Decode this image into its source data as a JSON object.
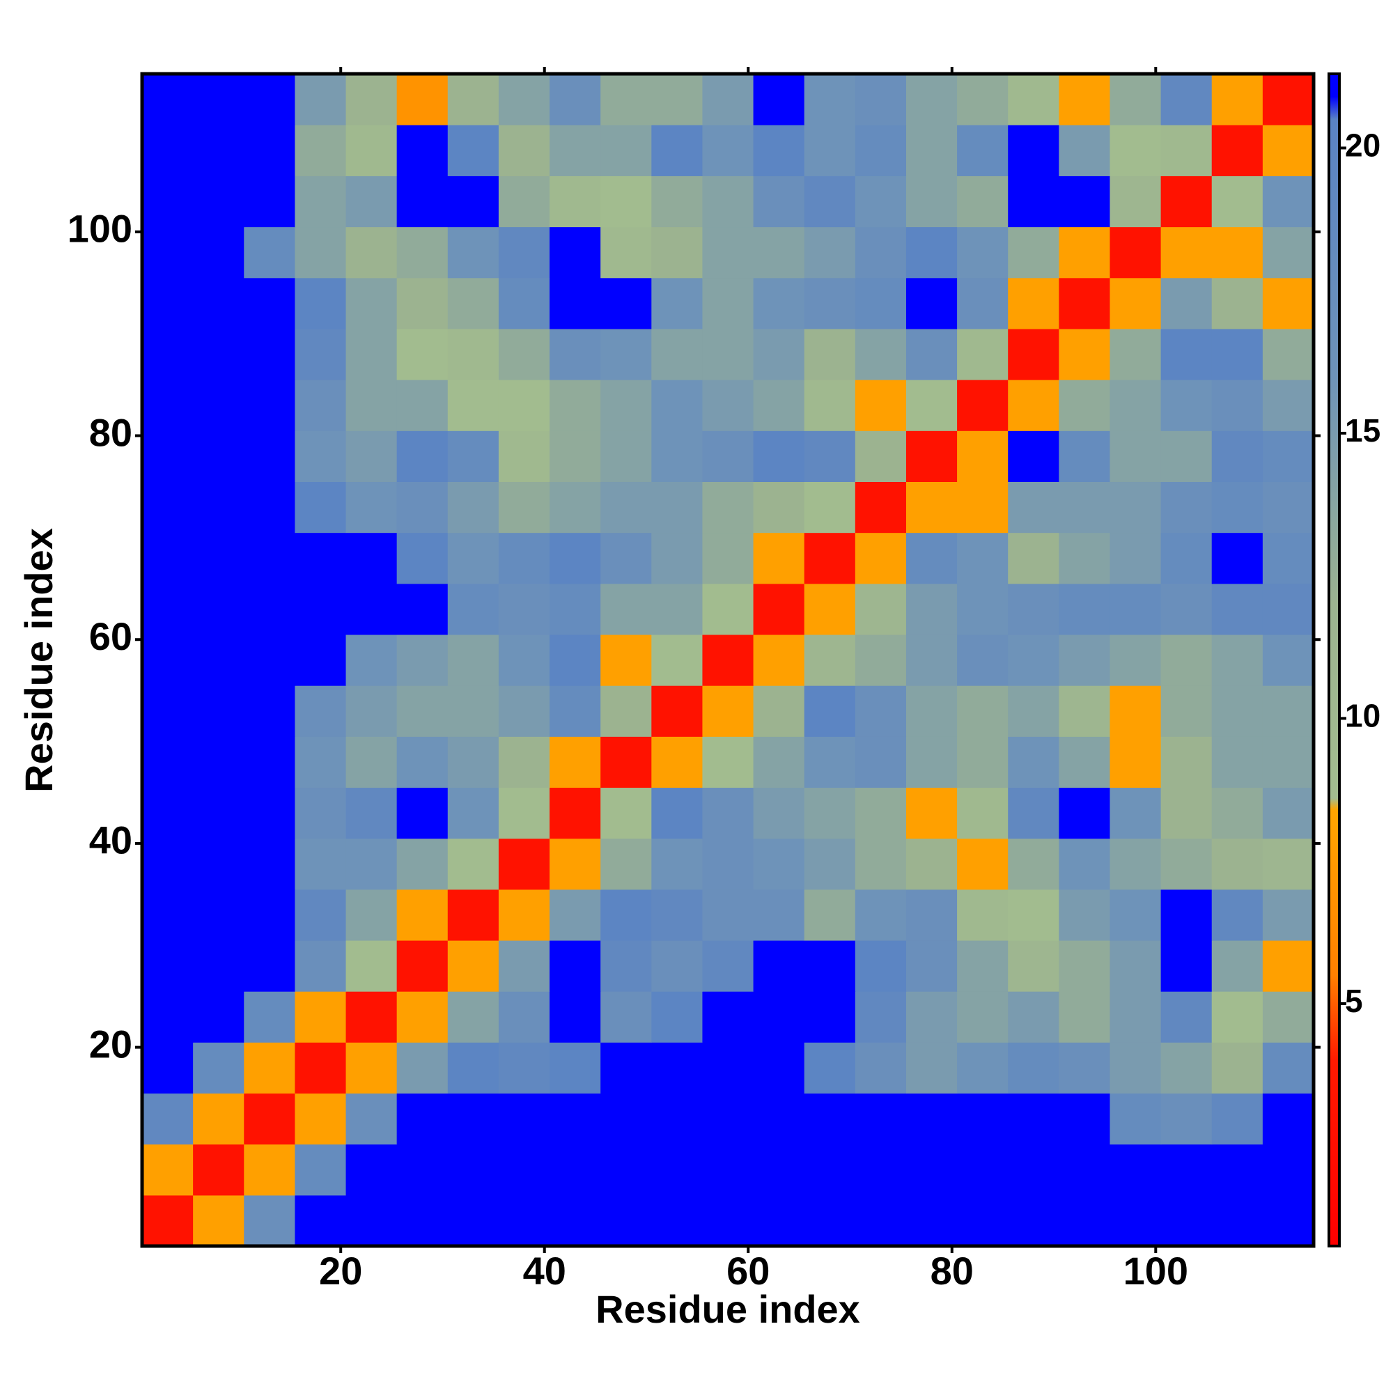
{
  "chart_data": {
    "type": "heatmap",
    "xlabel": "Residue index",
    "ylabel": "Residue index",
    "xlim": [
      0.5,
      115.5
    ],
    "ylim": [
      0.5,
      115.5
    ],
    "xticks": [
      20,
      40,
      60,
      80,
      100
    ],
    "yticks": [
      20,
      40,
      60,
      80,
      100
    ],
    "xbins": [
      0.5,
      5.5,
      10.5,
      15.5,
      20.5,
      25.5,
      30.5,
      35.5,
      40.5,
      45.5,
      50.5,
      55.5,
      60.5,
      65.5,
      70.5,
      75.5,
      80.5,
      85.5,
      90.5,
      95.5,
      100.5,
      105.5,
      110.5,
      115.5
    ],
    "ybins": [
      0.5,
      5.5,
      10.5,
      15.5,
      20.5,
      25.5,
      30.5,
      35.5,
      40.5,
      45.5,
      50.5,
      55.5,
      60.5,
      65.5,
      70.5,
      75.5,
      80.5,
      85.5,
      90.5,
      95.5,
      100.5,
      105.5,
      110.5,
      115.5
    ],
    "z": [
      [
        3,
        8,
        17,
        21,
        21,
        21,
        21,
        21,
        21,
        21,
        21,
        21,
        21,
        21,
        21,
        21,
        21,
        21,
        21,
        21,
        21,
        21,
        21
      ],
      [
        8,
        3,
        8,
        18,
        21,
        21,
        21,
        21,
        21,
        21,
        21,
        21,
        21,
        21,
        21,
        21,
        21,
        21,
        21,
        21,
        21,
        21,
        21
      ],
      [
        19,
        8,
        3,
        8,
        17,
        21,
        21,
        21,
        21,
        21,
        21,
        21,
        21,
        21,
        21,
        21,
        21,
        21,
        21,
        18,
        17,
        19,
        21
      ],
      [
        21,
        18,
        8,
        3,
        8,
        15,
        20,
        19,
        20,
        21,
        21,
        21,
        21,
        20,
        17,
        15,
        16,
        18,
        17,
        15,
        14,
        12,
        18
      ],
      [
        21,
        21,
        18,
        8,
        3,
        8,
        14,
        17,
        21,
        17,
        20,
        21,
        21,
        21,
        19,
        15,
        14,
        15,
        13,
        15,
        19,
        9,
        13
      ],
      [
        21,
        21,
        21,
        17,
        9,
        3,
        8,
        15,
        21,
        19,
        17,
        19,
        21,
        21,
        20,
        17,
        14,
        11,
        13,
        15,
        21,
        14,
        8
      ],
      [
        21,
        21,
        21,
        19,
        14,
        8,
        3,
        8,
        15,
        20,
        19,
        17,
        17,
        13,
        16,
        17,
        10,
        9,
        15,
        16,
        21,
        19,
        15
      ],
      [
        21,
        21,
        21,
        16,
        16,
        14,
        9,
        3,
        8,
        13,
        16,
        17,
        16,
        15,
        13,
        12,
        8,
        13,
        16,
        14,
        13,
        12,
        11
      ],
      [
        21,
        21,
        21,
        17,
        19,
        21,
        16,
        9,
        3,
        9,
        20,
        17,
        15,
        14,
        13,
        8,
        10,
        19,
        21,
        16,
        12,
        13,
        15
      ],
      [
        21,
        21,
        21,
        16,
        14,
        16,
        15,
        12,
        8,
        3,
        8,
        9,
        14,
        16,
        17,
        14,
        13,
        16,
        14,
        8,
        12,
        14,
        14
      ],
      [
        21,
        21,
        21,
        17,
        15,
        14,
        14,
        15,
        18,
        12,
        3,
        8,
        12,
        20,
        17,
        14,
        13,
        14,
        11,
        8,
        13,
        14,
        14
      ],
      [
        21,
        21,
        21,
        21,
        16,
        15,
        14,
        16,
        20,
        8,
        9,
        3,
        8,
        11,
        13,
        15,
        17,
        16,
        15,
        14,
        13,
        14,
        16
      ],
      [
        21,
        21,
        21,
        21,
        21,
        21,
        18,
        17,
        18,
        14,
        14,
        9,
        3,
        8,
        11,
        15,
        16,
        17,
        18,
        18,
        17,
        19,
        19
      ],
      [
        21,
        21,
        21,
        21,
        21,
        20,
        16,
        18,
        20,
        17,
        15,
        13,
        8,
        3,
        8,
        18,
        16,
        12,
        14,
        15,
        18,
        21,
        18
      ],
      [
        21,
        21,
        21,
        20,
        16,
        17,
        15,
        13,
        14,
        15,
        15,
        13,
        12,
        9,
        3,
        8,
        8,
        15,
        15,
        15,
        17,
        18,
        17
      ],
      [
        21,
        21,
        21,
        16,
        15,
        20,
        18,
        10,
        13,
        14,
        16,
        17,
        20,
        19,
        12,
        3,
        8,
        21,
        18,
        14,
        14,
        19,
        18
      ],
      [
        21,
        21,
        21,
        17,
        14,
        14,
        9,
        9,
        13,
        14,
        16,
        15,
        14,
        10,
        8,
        9,
        3,
        8,
        13,
        14,
        16,
        17,
        15
      ],
      [
        21,
        21,
        21,
        19,
        14,
        9,
        10,
        13,
        17,
        16,
        14,
        14,
        15,
        12,
        14,
        17,
        10,
        3,
        8,
        13,
        20,
        20,
        13
      ],
      [
        21,
        21,
        21,
        20,
        14,
        12,
        13,
        18,
        21,
        21,
        16,
        14,
        16,
        17,
        18,
        21,
        17,
        8,
        3,
        8,
        15,
        12,
        8
      ],
      [
        21,
        21,
        18,
        14,
        12,
        13,
        16,
        19,
        21,
        10,
        12,
        14,
        14,
        15,
        17,
        20,
        16,
        13,
        8,
        3,
        8,
        8,
        14
      ],
      [
        21,
        21,
        21,
        14,
        15,
        21,
        21,
        13,
        10,
        9,
        13,
        14,
        17,
        19,
        16,
        14,
        13,
        21,
        21,
        11,
        3,
        9,
        16
      ],
      [
        21,
        21,
        21,
        13,
        10,
        21,
        20,
        12,
        14,
        14,
        20,
        16,
        20,
        16,
        18,
        14,
        18,
        21,
        15,
        9,
        10,
        3,
        8
      ],
      [
        21,
        21,
        21,
        15,
        12,
        7,
        12,
        14,
        17,
        13,
        13,
        15,
        21,
        16,
        17,
        14,
        13,
        10,
        8,
        13,
        19,
        8,
        3
      ]
    ],
    "colorbar": {
      "lim": [
        0.75,
        21.3
      ],
      "ticks": [
        5,
        10,
        15,
        20
      ],
      "stops": [
        {
          "value": 0.75,
          "color": "#ff0000"
        },
        {
          "value": 4,
          "color": "#ff1a00"
        },
        {
          "value": 5.5,
          "color": "#ff8000"
        },
        {
          "value": 8.4,
          "color": "#ffa500"
        },
        {
          "value": 8.6,
          "color": "#a3bd8f"
        },
        {
          "value": 12,
          "color": "#9cb390"
        },
        {
          "value": 16,
          "color": "#6e93b9"
        },
        {
          "value": 20.5,
          "color": "#5a83c4"
        },
        {
          "value": 20.9,
          "color": "#0000ff"
        },
        {
          "value": 21.3,
          "color": "#0000ff"
        }
      ]
    }
  }
}
